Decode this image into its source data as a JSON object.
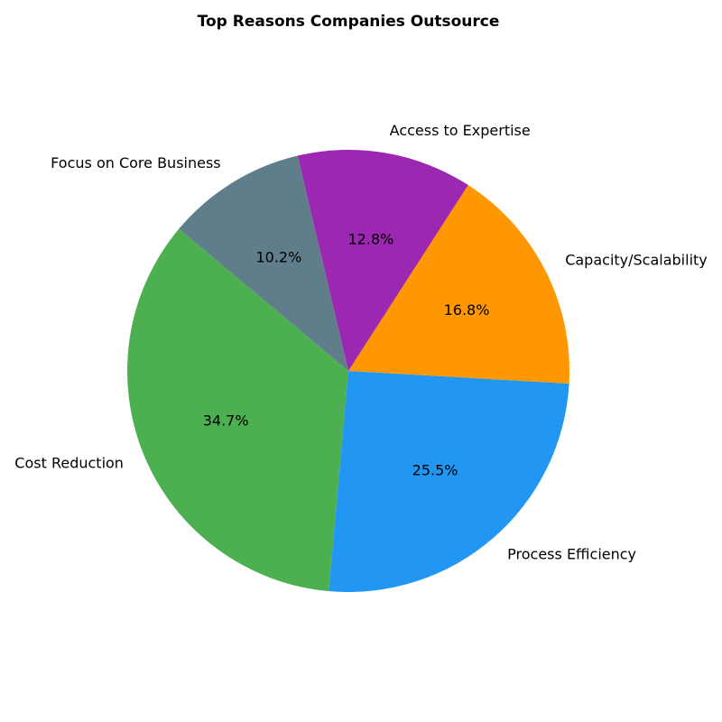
{
  "chart_data": {
    "type": "pie",
    "title": "Top Reasons Companies Outsource",
    "categories": [
      "Cost Reduction",
      "Process Efficiency",
      "Capacity/Scalability",
      "Access to Expertise",
      "Focus on Core Business"
    ],
    "values": [
      34.7,
      25.5,
      16.8,
      12.8,
      10.2
    ],
    "value_labels": [
      "34.7%",
      "25.5%",
      "16.8%",
      "12.8%",
      "10.2%"
    ],
    "colors": [
      "#4caf50",
      "#2196f3",
      "#ff9800",
      "#9c27b0",
      "#607d8b"
    ]
  }
}
